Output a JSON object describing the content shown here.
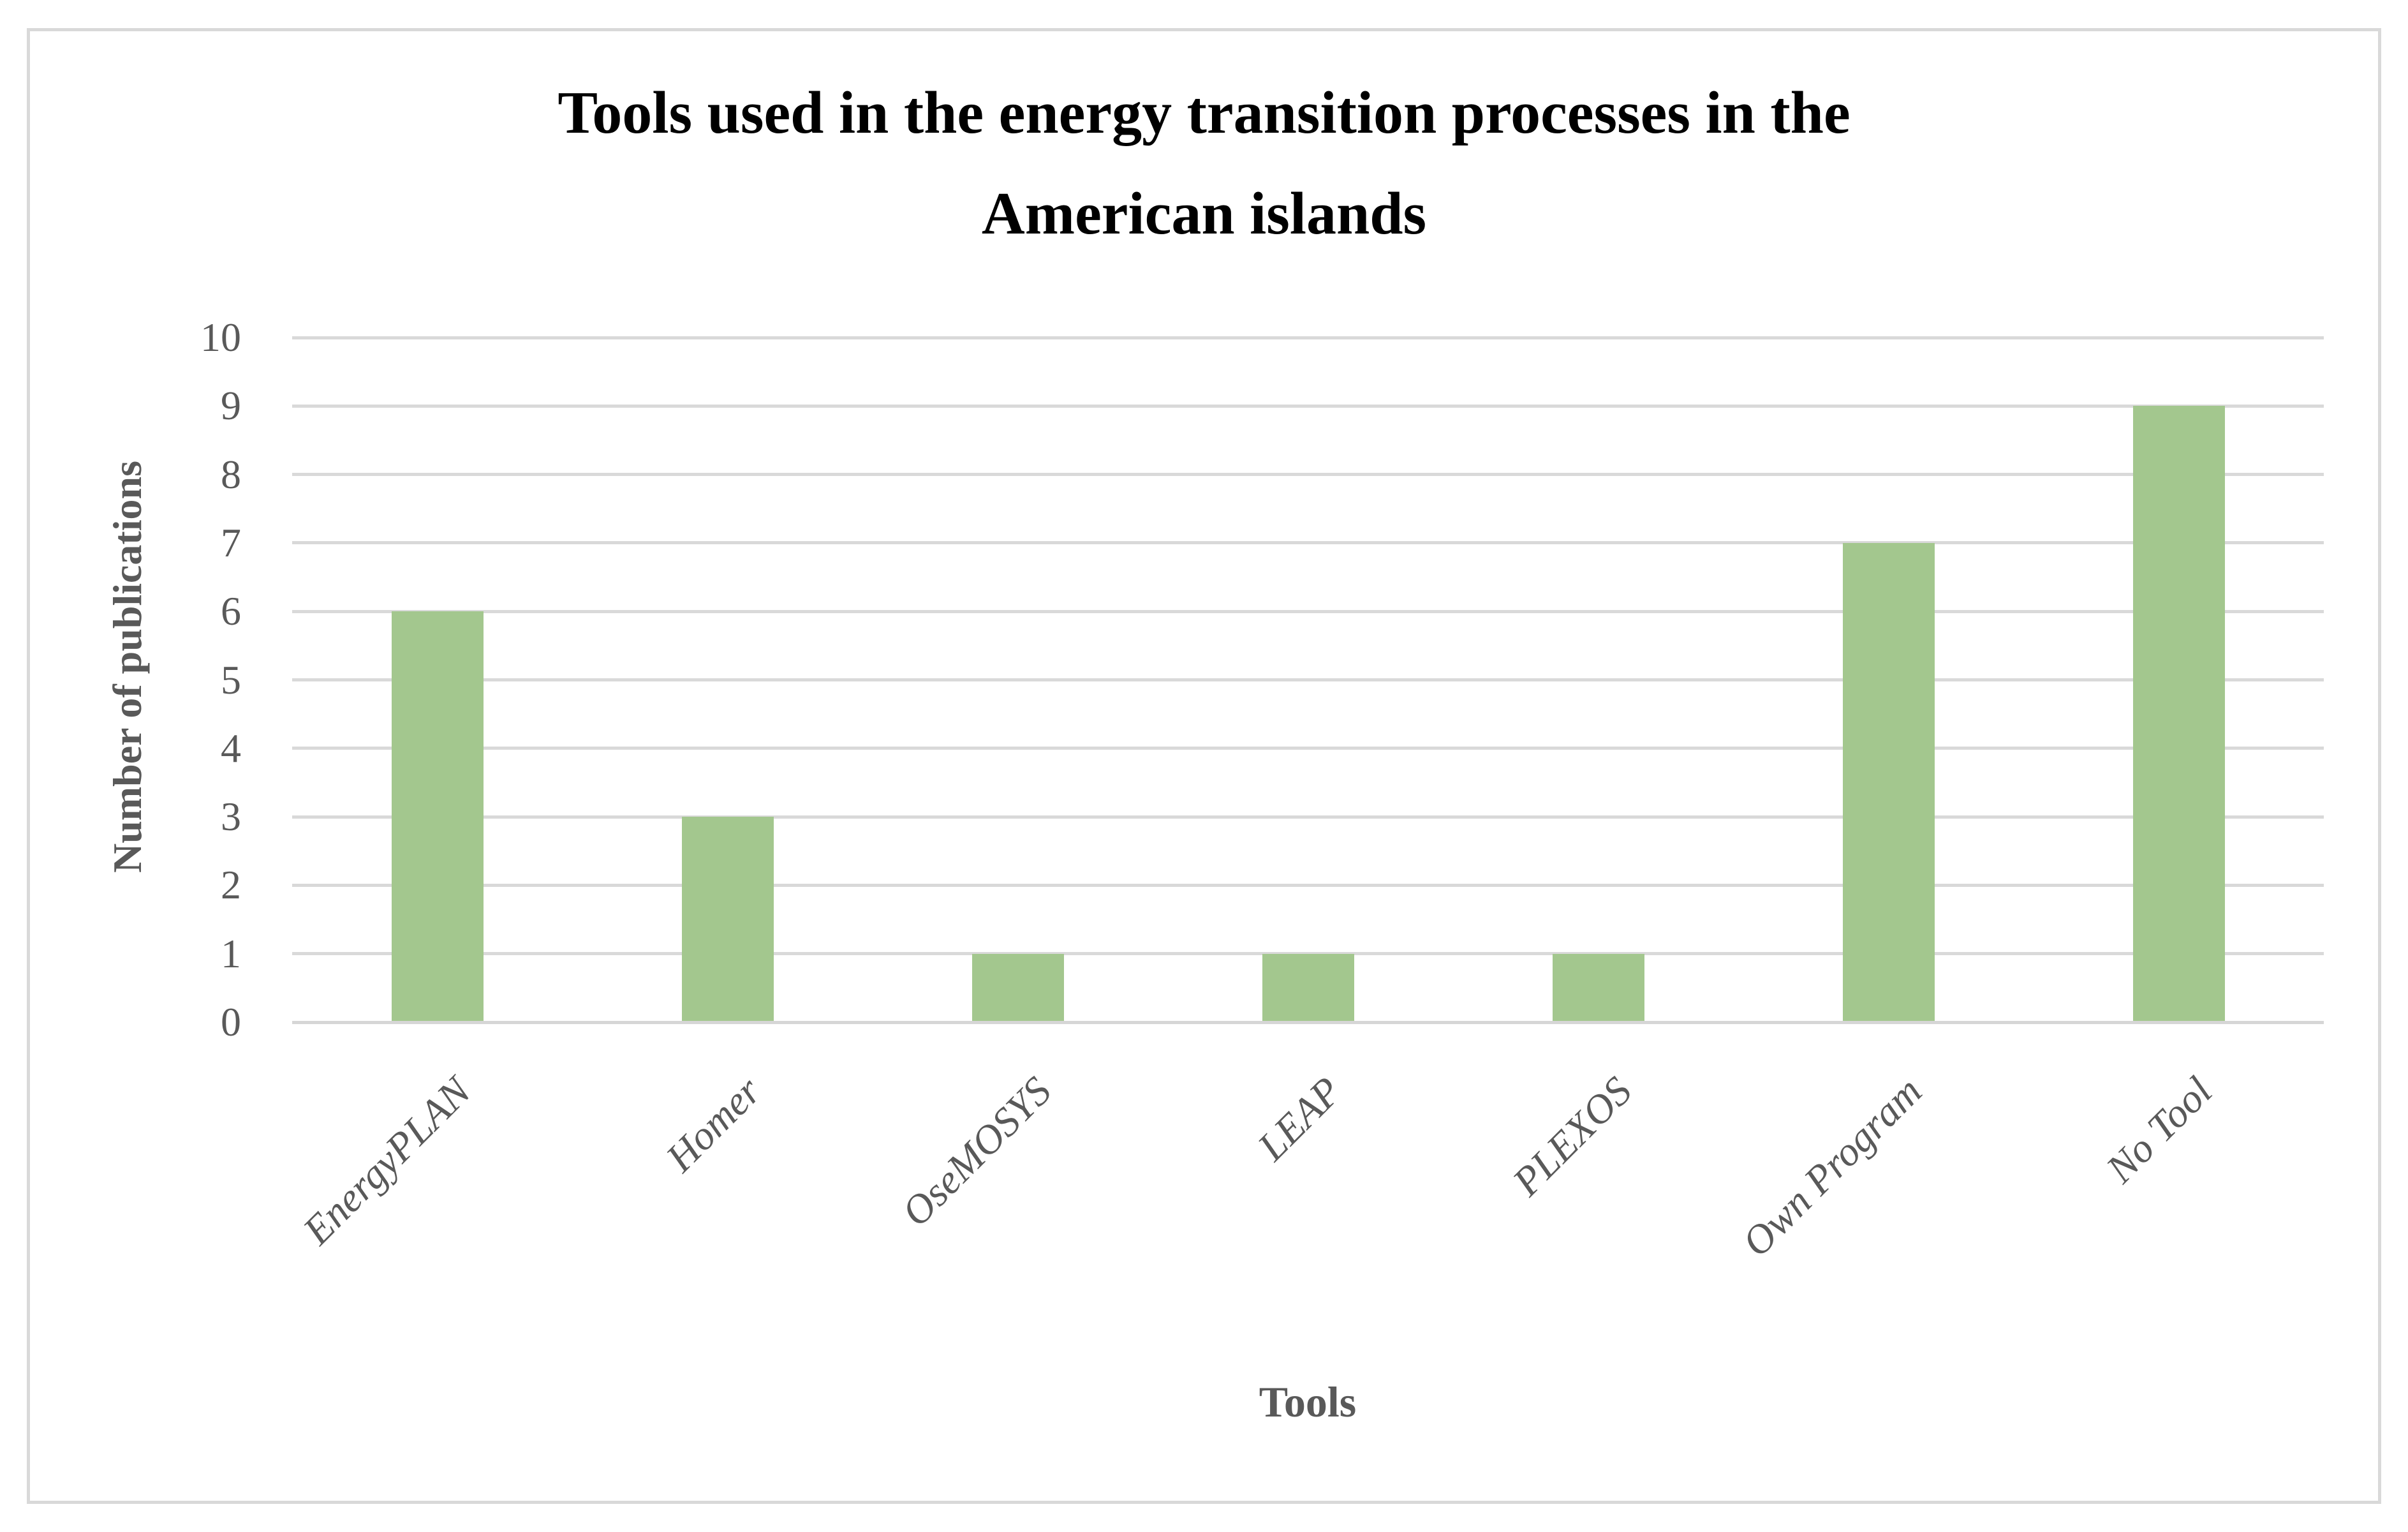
{
  "title": {
    "line1": "Tools used in the energy transition processes in the",
    "line2": "American islands"
  },
  "y_axis": {
    "label": "Number of publications"
  },
  "x_axis": {
    "label": "Tools"
  },
  "chart_data": {
    "type": "bar",
    "title": "Tools used in the energy transition processes in the American islands",
    "categories": [
      "EnergyPLAN",
      "Homer",
      "OseMOSYS",
      "LEAP",
      "PLEXOS",
      "Own Program",
      "No Tool"
    ],
    "values": [
      6,
      3,
      1,
      1,
      1,
      7,
      9
    ],
    "xlabel": "Tools",
    "ylabel": "Number of publications",
    "ylim": [
      0,
      10
    ],
    "yticks": [
      0,
      1,
      2,
      3,
      4,
      5,
      6,
      7,
      8,
      9,
      10
    ],
    "grid": "horizontal",
    "legend_position": "none",
    "bar_color": "#a3c78e",
    "gridline_color": "#d9d9d9",
    "axis_line_color": "#d6d6d6",
    "tick_text_color": "#595959",
    "title_color": "#000000",
    "border_color": "#d9d9d9"
  }
}
